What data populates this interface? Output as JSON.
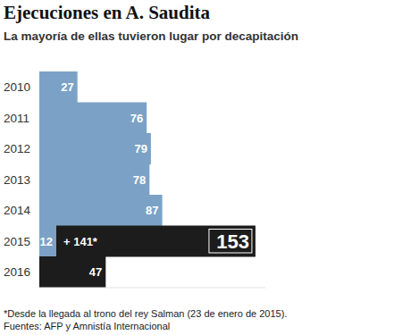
{
  "chart_data": {
    "type": "bar",
    "orientation": "horizontal",
    "stacked": true,
    "title": "Ejecuciones en A. Saudita",
    "subtitle": "La mayoría de ellas tuvieron lugar por decapitación",
    "categories": [
      "2010",
      "2011",
      "2012",
      "2013",
      "2014",
      "2015",
      "2016"
    ],
    "series": [
      {
        "color": "#7ba2c6",
        "values": [
          27,
          76,
          79,
          78,
          87,
          12,
          null
        ]
      },
      {
        "color": "#1c1c1c",
        "values": [
          null,
          null,
          null,
          null,
          null,
          141,
          47
        ],
        "value_labels": [
          null,
          null,
          null,
          null,
          null,
          "+ 141*",
          "47"
        ]
      }
    ],
    "totals": [
      null,
      null,
      null,
      null,
      null,
      153,
      null
    ],
    "xlim": [
      0,
      160
    ],
    "xticks": [],
    "data_labels": true,
    "tick_labels": false,
    "grid": false,
    "footnote": "*Desde la llegada al trono del rey Salman (23 de enero de 2015).",
    "source": "Fuentes: AFP y Amnistía Internacional"
  }
}
